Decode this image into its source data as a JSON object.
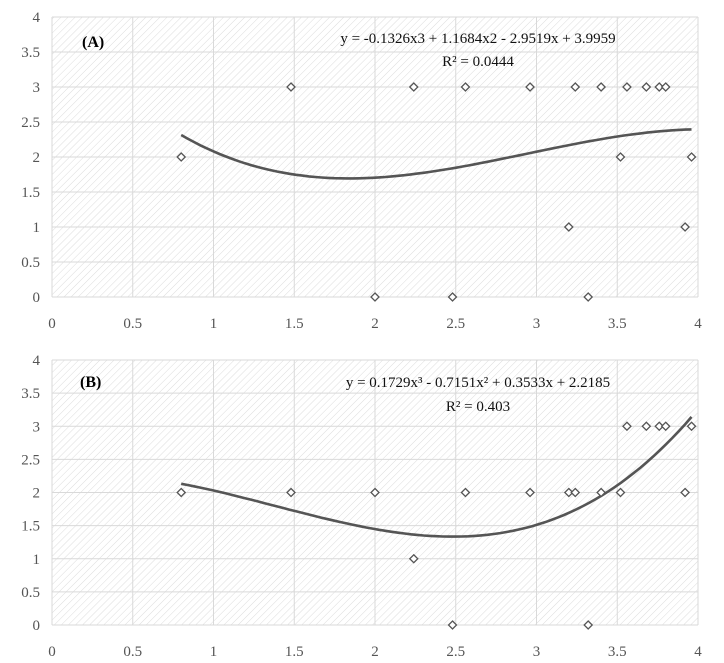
{
  "chart_data": [
    {
      "type": "scatter",
      "panel_label": "(A)",
      "equation": "y = -0.1326x3 + 1.1684x2 - 2.9519x + 3.9959",
      "r_squared": "R² = 0.0444",
      "xlim": [
        0,
        4
      ],
      "ylim": [
        0,
        4
      ],
      "x_ticks": [
        "0",
        "0.5",
        "1",
        "1.5",
        "2",
        "2.5",
        "3",
        "3.5",
        "4"
      ],
      "y_ticks": [
        "0",
        "0.5",
        "1",
        "1.5",
        "2",
        "2.5",
        "3",
        "3.5",
        "4"
      ],
      "points": [
        [
          0.8,
          2
        ],
        [
          1.48,
          3
        ],
        [
          2.0,
          0
        ],
        [
          2.24,
          3
        ],
        [
          2.48,
          0
        ],
        [
          2.56,
          3
        ],
        [
          2.96,
          3
        ],
        [
          3.2,
          1
        ],
        [
          3.24,
          3
        ],
        [
          3.32,
          0
        ],
        [
          3.4,
          3
        ],
        [
          3.52,
          2
        ],
        [
          3.56,
          3
        ],
        [
          3.68,
          3
        ],
        [
          3.76,
          3
        ],
        [
          3.8,
          3
        ],
        [
          3.92,
          1
        ],
        [
          3.96,
          2
        ]
      ],
      "trendline": {
        "type": "poly3",
        "coef": [
          -0.1326,
          1.1684,
          -2.9519,
          3.9959
        ],
        "x_range": [
          0.8,
          3.96
        ]
      }
    },
    {
      "type": "scatter",
      "panel_label": "(B)",
      "equation": "y = 0.1729x³ - 0.7151x² + 0.3533x + 2.2185",
      "r_squared": "R² = 0.403",
      "xlim": [
        0,
        4
      ],
      "ylim": [
        0,
        4
      ],
      "x_ticks": [
        "0",
        "0.5",
        "1",
        "1.5",
        "2",
        "2.5",
        "3",
        "3.5",
        "4"
      ],
      "y_ticks": [
        "0",
        "0.5",
        "1",
        "1.5",
        "2",
        "2.5",
        "3",
        "3.5",
        "4"
      ],
      "points": [
        [
          0.8,
          2
        ],
        [
          1.48,
          2
        ],
        [
          2.0,
          2
        ],
        [
          2.24,
          1
        ],
        [
          2.48,
          0
        ],
        [
          2.56,
          2
        ],
        [
          2.96,
          2
        ],
        [
          3.2,
          2
        ],
        [
          3.24,
          2
        ],
        [
          3.32,
          0
        ],
        [
          3.4,
          2
        ],
        [
          3.52,
          2
        ],
        [
          3.56,
          3
        ],
        [
          3.68,
          3
        ],
        [
          3.76,
          3
        ],
        [
          3.8,
          3
        ],
        [
          3.92,
          2
        ],
        [
          3.96,
          3
        ]
      ],
      "trendline": {
        "type": "poly3",
        "coef": [
          0.1729,
          -0.7151,
          0.3533,
          2.2185
        ],
        "x_range": [
          0.8,
          3.96
        ]
      }
    }
  ]
}
